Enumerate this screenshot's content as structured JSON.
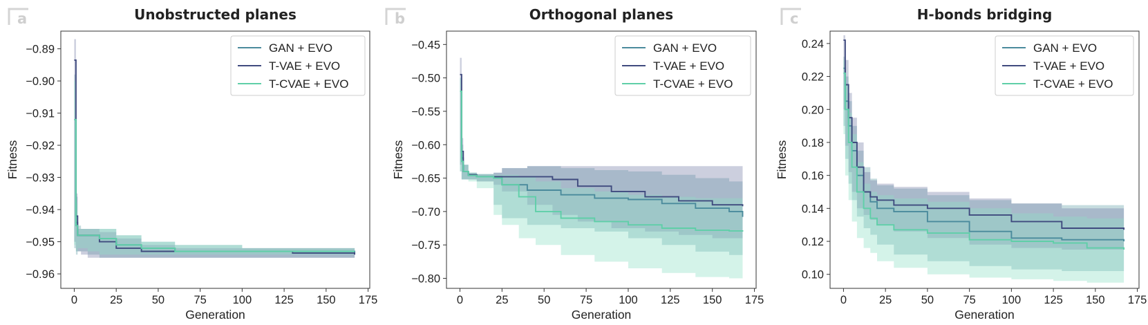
{
  "figure": {
    "legend_entries": [
      "GAN + EVO",
      "T-VAE + EVO",
      "T-CVAE + EVO"
    ],
    "series_colors": {
      "GAN + EVO": "#4a8a9c",
      "T-VAE + EVO": "#3f4a7e",
      "T-CVAE + EVO": "#5fcfa8"
    },
    "band_colors": {
      "GAN + EVO": "#6aa2ac",
      "T-VAE + EVO": "#7a82a8",
      "T-CVAE + EVO": "#8fe0c4"
    }
  },
  "chart_data": [
    {
      "panel_label": "a",
      "type": "line",
      "title": "Unobstructed planes",
      "xlabel": "Generation",
      "ylabel": "Fitness",
      "xlim": [
        -8,
        176
      ],
      "ylim": [
        -0.9645,
        -0.8845
      ],
      "xticks": [
        0,
        25,
        50,
        75,
        100,
        125,
        150,
        175
      ],
      "xtick_labels": [
        "0",
        "25",
        "50",
        "75",
        "100",
        "125",
        "150",
        "175"
      ],
      "yticks": [
        -0.89,
        -0.9,
        -0.91,
        -0.92,
        -0.93,
        -0.94,
        -0.95,
        -0.96
      ],
      "ytick_labels": [
        "−0.89",
        "−0.90",
        "−0.91",
        "−0.92",
        "−0.93",
        "−0.94",
        "−0.95",
        "−0.96"
      ],
      "legend": "top-right",
      "series": [
        {
          "name": "GAN + EVO",
          "x": [
            0,
            1,
            2,
            4,
            8,
            15,
            25,
            40,
            60,
            100,
            130,
            167
          ],
          "values": [
            -0.912,
            -0.944,
            -0.948,
            -0.948,
            -0.948,
            -0.949,
            -0.951,
            -0.952,
            -0.953,
            -0.953,
            -0.953,
            -0.9535
          ],
          "band_low": [
            -0.925,
            -0.952,
            -0.954,
            -0.953,
            -0.953,
            -0.954,
            -0.955,
            -0.955,
            -0.955,
            -0.955,
            -0.955,
            -0.955
          ],
          "band_high": [
            -0.898,
            -0.936,
            -0.945,
            -0.946,
            -0.946,
            -0.946,
            -0.948,
            -0.95,
            -0.951,
            -0.952,
            -0.952,
            -0.952
          ]
        },
        {
          "name": "T-VAE + EVO",
          "x": [
            0,
            1,
            2,
            4,
            8,
            15,
            25,
            40,
            60,
            100,
            130,
            167
          ],
          "values": [
            -0.8935,
            -0.942,
            -0.948,
            -0.948,
            -0.948,
            -0.95,
            -0.952,
            -0.953,
            -0.953,
            -0.953,
            -0.9535,
            -0.954
          ],
          "band_low": [
            -0.9,
            -0.95,
            -0.953,
            -0.953,
            -0.954,
            -0.955,
            -0.955,
            -0.955,
            -0.955,
            -0.955,
            -0.955,
            -0.955
          ],
          "band_high": [
            -0.887,
            -0.935,
            -0.946,
            -0.946,
            -0.946,
            -0.947,
            -0.949,
            -0.951,
            -0.952,
            -0.952,
            -0.952,
            -0.953
          ]
        },
        {
          "name": "T-CVAE + EVO",
          "x": [
            0,
            1,
            2,
            4,
            8,
            15,
            25,
            40,
            60,
            100,
            130,
            167
          ],
          "values": [
            -0.912,
            -0.945,
            -0.948,
            -0.948,
            -0.948,
            -0.949,
            -0.951,
            -0.952,
            -0.953,
            -0.953,
            -0.953,
            -0.953
          ],
          "band_low": [
            -0.924,
            -0.951,
            -0.953,
            -0.952,
            -0.952,
            -0.953,
            -0.954,
            -0.954,
            -0.954,
            -0.954,
            -0.954,
            -0.954
          ],
          "band_high": [
            -0.9,
            -0.938,
            -0.946,
            -0.946,
            -0.946,
            -0.946,
            -0.948,
            -0.95,
            -0.951,
            -0.952,
            -0.952,
            -0.952
          ]
        }
      ]
    },
    {
      "panel_label": "b",
      "type": "line",
      "title": "Orthogonal planes",
      "xlabel": "Generation",
      "ylabel": "Fitness",
      "xlim": [
        -8,
        176
      ],
      "ylim": [
        -0.815,
        -0.43
      ],
      "xticks": [
        0,
        25,
        50,
        75,
        100,
        125,
        150,
        175
      ],
      "xtick_labels": [
        "0",
        "25",
        "50",
        "75",
        "100",
        "125",
        "150",
        "175"
      ],
      "yticks": [
        -0.45,
        -0.5,
        -0.55,
        -0.6,
        -0.65,
        -0.7,
        -0.75,
        -0.8
      ],
      "ytick_labels": [
        "−0.45",
        "−0.50",
        "−0.55",
        "−0.60",
        "−0.65",
        "−0.70",
        "−0.75",
        "−0.80"
      ],
      "legend": "top-right",
      "series": [
        {
          "name": "GAN + EVO",
          "x": [
            0,
            1,
            2,
            5,
            10,
            20,
            25,
            40,
            60,
            80,
            100,
            120,
            140,
            160,
            168
          ],
          "values": [
            -0.52,
            -0.62,
            -0.64,
            -0.646,
            -0.648,
            -0.648,
            -0.66,
            -0.668,
            -0.675,
            -0.68,
            -0.682,
            -0.688,
            -0.695,
            -0.7,
            -0.708
          ],
          "band_low": [
            -0.54,
            -0.64,
            -0.652,
            -0.652,
            -0.652,
            -0.655,
            -0.69,
            -0.71,
            -0.72,
            -0.725,
            -0.73,
            -0.74,
            -0.75,
            -0.76,
            -0.765
          ],
          "band_high": [
            -0.5,
            -0.6,
            -0.63,
            -0.642,
            -0.644,
            -0.642,
            -0.635,
            -0.632,
            -0.635,
            -0.638,
            -0.64,
            -0.645,
            -0.65,
            -0.655,
            -0.655
          ]
        },
        {
          "name": "T-VAE + EVO",
          "x": [
            0,
            1,
            2,
            5,
            10,
            20,
            25,
            40,
            55,
            70,
            90,
            110,
            130,
            150,
            168
          ],
          "values": [
            -0.495,
            -0.61,
            -0.64,
            -0.645,
            -0.648,
            -0.648,
            -0.648,
            -0.648,
            -0.652,
            -0.662,
            -0.67,
            -0.678,
            -0.684,
            -0.69,
            -0.692
          ],
          "band_low": [
            -0.52,
            -0.63,
            -0.652,
            -0.652,
            -0.652,
            -0.655,
            -0.66,
            -0.67,
            -0.69,
            -0.705,
            -0.715,
            -0.725,
            -0.73,
            -0.735,
            -0.74
          ],
          "band_high": [
            -0.47,
            -0.59,
            -0.63,
            -0.642,
            -0.644,
            -0.642,
            -0.635,
            -0.632,
            -0.632,
            -0.632,
            -0.632,
            -0.632,
            -0.632,
            -0.632,
            -0.632
          ]
        },
        {
          "name": "T-CVAE + EVO",
          "x": [
            0,
            1,
            2,
            5,
            10,
            20,
            25,
            35,
            45,
            60,
            80,
            100,
            120,
            140,
            160,
            168
          ],
          "values": [
            -0.52,
            -0.625,
            -0.64,
            -0.646,
            -0.648,
            -0.65,
            -0.66,
            -0.678,
            -0.7,
            -0.71,
            -0.715,
            -0.72,
            -0.725,
            -0.728,
            -0.729,
            -0.73
          ],
          "band_low": [
            -0.54,
            -0.64,
            -0.652,
            -0.652,
            -0.655,
            -0.665,
            -0.705,
            -0.72,
            -0.74,
            -0.75,
            -0.765,
            -0.775,
            -0.785,
            -0.792,
            -0.798,
            -0.8
          ],
          "band_high": [
            -0.5,
            -0.61,
            -0.63,
            -0.642,
            -0.644,
            -0.645,
            -0.645,
            -0.648,
            -0.655,
            -0.665,
            -0.67,
            -0.675,
            -0.678,
            -0.68,
            -0.68,
            -0.68
          ]
        }
      ]
    },
    {
      "panel_label": "c",
      "type": "line",
      "title": "H-bonds bridging",
      "xlabel": "Generation",
      "ylabel": "Fitness",
      "xlim": [
        -8,
        176
      ],
      "ylim": [
        0.0915,
        0.2475
      ],
      "xticks": [
        0,
        25,
        50,
        75,
        100,
        125,
        150,
        175
      ],
      "xtick_labels": [
        "0",
        "25",
        "50",
        "75",
        "100",
        "125",
        "150",
        "175"
      ],
      "yticks": [
        0.24,
        0.22,
        0.2,
        0.18,
        0.16,
        0.14,
        0.12,
        0.1
      ],
      "ytick_labels": [
        "0.24",
        "0.22",
        "0.20",
        "0.18",
        "0.16",
        "0.14",
        "0.12",
        "0.10"
      ],
      "legend": "top-right",
      "series": [
        {
          "name": "GAN + EVO",
          "x": [
            0,
            1,
            3,
            5,
            8,
            12,
            16,
            20,
            30,
            50,
            75,
            100,
            130,
            167
          ],
          "values": [
            0.225,
            0.205,
            0.19,
            0.175,
            0.16,
            0.15,
            0.144,
            0.14,
            0.138,
            0.132,
            0.126,
            0.122,
            0.121,
            0.12
          ],
          "band_low": [
            0.22,
            0.19,
            0.17,
            0.155,
            0.145,
            0.135,
            0.128,
            0.124,
            0.118,
            0.112,
            0.108,
            0.105,
            0.103,
            0.102
          ],
          "band_high": [
            0.232,
            0.22,
            0.205,
            0.19,
            0.175,
            0.165,
            0.158,
            0.154,
            0.152,
            0.148,
            0.145,
            0.143,
            0.142,
            0.142
          ]
        },
        {
          "name": "T-VAE + EVO",
          "x": [
            0,
            1,
            3,
            5,
            8,
            12,
            16,
            20,
            30,
            50,
            75,
            100,
            130,
            167
          ],
          "values": [
            0.242,
            0.215,
            0.195,
            0.18,
            0.165,
            0.15,
            0.147,
            0.145,
            0.142,
            0.14,
            0.136,
            0.132,
            0.128,
            0.127
          ],
          "band_low": [
            0.23,
            0.2,
            0.178,
            0.162,
            0.15,
            0.14,
            0.136,
            0.133,
            0.13,
            0.126,
            0.122,
            0.118,
            0.116,
            0.115
          ],
          "band_high": [
            0.245,
            0.23,
            0.21,
            0.195,
            0.18,
            0.162,
            0.157,
            0.155,
            0.153,
            0.15,
            0.146,
            0.143,
            0.14,
            0.138
          ]
        },
        {
          "name": "T-CVAE + EVO",
          "x": [
            0,
            1,
            3,
            5,
            8,
            12,
            16,
            20,
            30,
            50,
            75,
            100,
            125,
            145,
            167
          ],
          "values": [
            0.222,
            0.2,
            0.18,
            0.165,
            0.15,
            0.14,
            0.134,
            0.13,
            0.127,
            0.125,
            0.121,
            0.12,
            0.119,
            0.116,
            0.115
          ],
          "band_low": [
            0.215,
            0.185,
            0.16,
            0.145,
            0.132,
            0.122,
            0.116,
            0.113,
            0.108,
            0.104,
            0.1,
            0.098,
            0.097,
            0.096,
            0.095
          ],
          "band_high": [
            0.23,
            0.215,
            0.198,
            0.185,
            0.168,
            0.155,
            0.15,
            0.148,
            0.146,
            0.144,
            0.14,
            0.137,
            0.135,
            0.134,
            0.133
          ]
        }
      ]
    }
  ]
}
